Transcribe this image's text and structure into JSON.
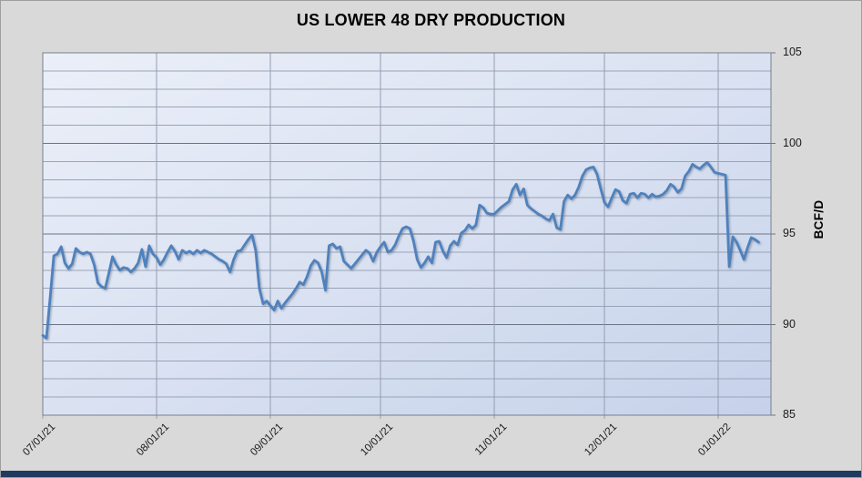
{
  "window": {
    "background_color": "#d9d9d9",
    "bottom_strip_color": "#1e3b5f"
  },
  "chart_data": {
    "type": "line",
    "title": "US LOWER 48 DRY PRODUCTION",
    "ylabel": "BCF/D",
    "ylim": [
      85,
      105
    ],
    "y_ticks": [
      85,
      90,
      95,
      100,
      105
    ],
    "y_minor_gridline_step": 1,
    "legend": "none",
    "x_frequency": "daily",
    "x_ticks": [
      {
        "label": "07/01/21",
        "day": 0
      },
      {
        "label": "08/01/21",
        "day": 31
      },
      {
        "label": "09/01/21",
        "day": 62
      },
      {
        "label": "10/01/21",
        "day": 92
      },
      {
        "label": "11/01/21",
        "day": 123
      },
      {
        "label": "12/01/21",
        "day": 153
      },
      {
        "label": "01/01/22",
        "day": 184
      }
    ],
    "plot_bg_gradient": [
      "#ebeff8",
      "#dae2f2",
      "#c6d2ea"
    ],
    "grid": {
      "minor": "#9aa4b8",
      "major": "#6b7585",
      "vertical": "#939eb1",
      "border": "#76808f"
    },
    "series": [
      {
        "name": "US Lower 48 Dry Production",
        "color": "#4f81bd",
        "start_date": "07/01/21",
        "values": [
          89.4,
          89.25,
          91.5,
          93.8,
          93.9,
          94.3,
          93.4,
          93.1,
          93.35,
          94.2,
          94.0,
          93.9,
          94.0,
          93.9,
          93.3,
          92.3,
          92.1,
          92.0,
          92.85,
          93.75,
          93.3,
          93.0,
          93.15,
          93.1,
          92.9,
          93.1,
          93.4,
          94.15,
          93.2,
          94.35,
          93.9,
          93.7,
          93.3,
          93.6,
          94.0,
          94.35,
          94.05,
          93.6,
          94.1,
          93.95,
          94.05,
          93.9,
          94.1,
          93.95,
          94.1,
          94.0,
          93.9,
          93.75,
          93.6,
          93.5,
          93.35,
          92.9,
          93.6,
          94.05,
          94.1,
          94.4,
          94.7,
          94.95,
          94.1,
          92.0,
          91.15,
          91.3,
          91.05,
          90.8,
          91.3,
          90.9,
          91.2,
          91.45,
          91.7,
          92.0,
          92.35,
          92.2,
          92.65,
          93.25,
          93.55,
          93.4,
          92.9,
          91.9,
          94.35,
          94.45,
          94.2,
          94.3,
          93.5,
          93.3,
          93.1,
          93.35,
          93.6,
          93.85,
          94.1,
          93.95,
          93.5,
          94.0,
          94.3,
          94.55,
          94.0,
          94.1,
          94.4,
          94.9,
          95.3,
          95.4,
          95.3,
          94.6,
          93.6,
          93.15,
          93.4,
          93.75,
          93.4,
          94.55,
          94.6,
          94.05,
          93.7,
          94.35,
          94.6,
          94.4,
          95.05,
          95.2,
          95.5,
          95.3,
          95.5,
          96.6,
          96.45,
          96.15,
          96.1,
          96.1,
          96.3,
          96.5,
          96.65,
          96.8,
          97.45,
          97.75,
          97.15,
          97.5,
          96.6,
          96.4,
          96.25,
          96.1,
          96.0,
          95.85,
          95.75,
          96.1,
          95.35,
          95.25,
          96.8,
          97.15,
          96.95,
          97.15,
          97.6,
          98.2,
          98.55,
          98.65,
          98.7,
          98.3,
          97.5,
          96.75,
          96.5,
          97.0,
          97.45,
          97.35,
          96.85,
          96.7,
          97.2,
          97.25,
          97.0,
          97.25,
          97.2,
          97.0,
          97.2,
          97.05,
          97.1,
          97.2,
          97.4,
          97.75,
          97.6,
          97.3,
          97.5,
          98.2,
          98.45,
          98.85,
          98.7,
          98.6,
          98.8,
          98.95,
          98.7,
          98.4,
          98.35,
          98.3,
          98.25,
          93.2,
          94.85,
          94.55,
          94.1,
          93.6,
          94.25,
          94.8,
          94.7,
          94.55
        ]
      }
    ]
  }
}
